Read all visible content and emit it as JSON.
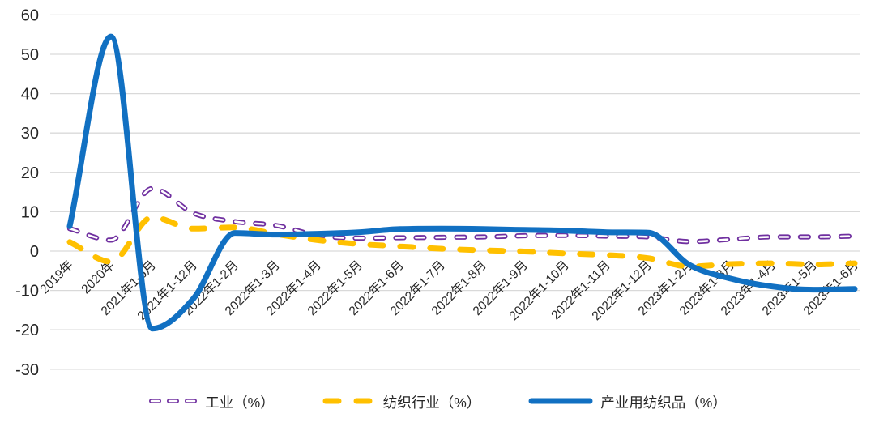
{
  "chart_data": {
    "type": "line",
    "title": "",
    "xlabel": "",
    "ylabel": "",
    "smooth": true,
    "grid": "horizontal",
    "legend_position": "bottom",
    "ylim": [
      -30,
      60
    ],
    "ytick_step": 10,
    "yticks": [
      "60",
      "50",
      "40",
      "30",
      "20",
      "10",
      "0",
      "-10",
      "-20",
      "-30"
    ],
    "categories": [
      "2019年",
      "2020年",
      "2021年1-6月",
      "2021年1-12月",
      "2022年1-2月",
      "2022年1-3月",
      "2022年1-4月",
      "2022年1-5月",
      "2022年1-6月",
      "2022年1-7月",
      "2022年1-8月",
      "2022年1-9月",
      "2022年1-10月",
      "2022年1-11月",
      "2022年1-12月",
      "2023年1-2月",
      "2023年1-3月",
      "2023年1-4月",
      "2023年1-5月",
      "2023年1-6月"
    ],
    "series": [
      {
        "name": "工业（%）",
        "color": "#7030A0",
        "line_style": "dash-hollow",
        "values": [
          5.7,
          2.8,
          15.9,
          9.6,
          7.5,
          6.5,
          4.0,
          3.3,
          3.4,
          3.5,
          3.6,
          3.9,
          4.0,
          3.8,
          3.6,
          2.4,
          3.0,
          3.6,
          3.6,
          3.8
        ]
      },
      {
        "name": "纺织行业（%）",
        "color": "#FFC000",
        "line_style": "dash",
        "values": [
          2.3,
          -2.7,
          8.6,
          5.7,
          6.0,
          4.3,
          2.8,
          1.8,
          1.2,
          0.6,
          0.2,
          -0.1,
          -0.6,
          -1.0,
          -1.8,
          -3.9,
          -3.3,
          -3.1,
          -3.4,
          -3.1
        ]
      },
      {
        "name": "产业用纺织品（%）",
        "color": "#1170C2",
        "line_style": "solid",
        "values": [
          6.3,
          54.5,
          -19.7,
          -12.0,
          4.6,
          4.2,
          4.4,
          4.8,
          5.6,
          5.7,
          5.6,
          5.4,
          5.2,
          4.8,
          4.7,
          -3.5,
          -7.0,
          -9.0,
          -9.8,
          -9.6
        ]
      }
    ]
  },
  "colors": {
    "background": "#FFFFFF",
    "gridline": "#D9D9D9",
    "axis_text": "#262626"
  }
}
